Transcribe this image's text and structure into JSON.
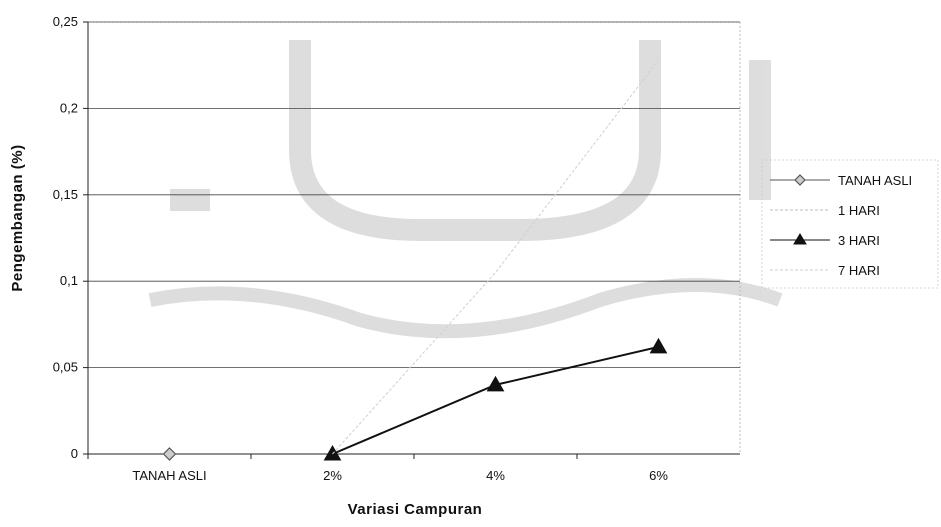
{
  "chart_data": {
    "type": "line",
    "categories": [
      "TANAH ASLI",
      "2%",
      "4%",
      "6%"
    ],
    "xlabel": "Variasi Campuran",
    "ylabel": "Pengembangan (%)",
    "ylim": [
      0,
      0.25
    ],
    "yticks": [
      "0",
      "0,05",
      "0,1",
      "0,15",
      "0,2",
      "0,25"
    ],
    "grid": true,
    "legend_position": "right",
    "series": [
      {
        "name": "TANAH ASLI",
        "values": [
          0,
          null,
          null,
          null
        ],
        "color": "#555555",
        "marker": "diamond"
      },
      {
        "name": "1 HARI",
        "values": [
          null,
          0,
          null,
          null
        ],
        "color": "#bdbdbd",
        "marker": "square"
      },
      {
        "name": "3 HARI",
        "values": [
          null,
          0,
          0.04,
          0.062
        ],
        "color": "#111111",
        "marker": "triangle"
      },
      {
        "name": "7 HARI",
        "values": [
          null,
          0,
          0.105,
          0.228
        ],
        "color": "#cfcfcf",
        "marker": "none"
      }
    ]
  }
}
